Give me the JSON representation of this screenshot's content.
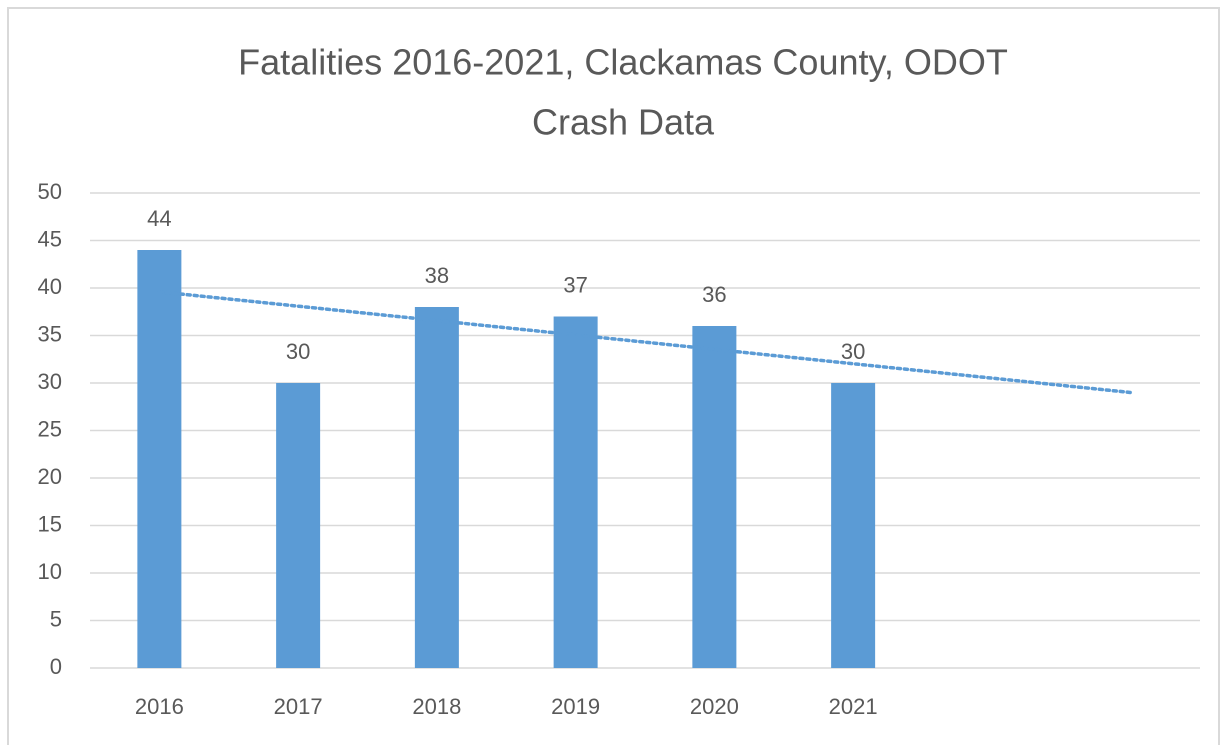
{
  "chart_data": {
    "type": "bar",
    "title": [
      "Fatalities 2016-2021, Clackamas County, ODOT",
      "Crash Data"
    ],
    "categories": [
      "2016",
      "2017",
      "2018",
      "2019",
      "2020",
      "2021",
      null,
      null
    ],
    "values": [
      44,
      30,
      38,
      37,
      36,
      30,
      null,
      null
    ],
    "color": "#5b9bd5",
    "ylim": [
      0,
      50
    ],
    "yticks": [
      0,
      5,
      10,
      15,
      20,
      25,
      30,
      35,
      40,
      45,
      50
    ],
    "grid": true,
    "trendline": {
      "type": "linear",
      "start": 39.6,
      "end": 29.0,
      "color": "#5b9bd5",
      "dotted": true
    }
  }
}
